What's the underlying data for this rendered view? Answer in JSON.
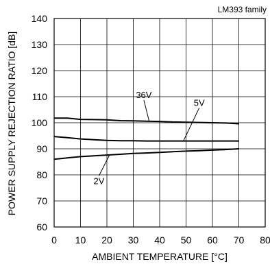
{
  "header": {
    "family_label": "LM393 family"
  },
  "chart_data": {
    "type": "line",
    "xlabel": "AMBIENT TEMPERATURE [°C]",
    "ylabel": "POWER SUPPLY REJECTION RATIO [dB]",
    "xlim": [
      0,
      80
    ],
    "ylim": [
      60,
      140
    ],
    "x_ticks": [
      "0",
      "10",
      "20",
      "30",
      "40",
      "50",
      "60",
      "70",
      "80"
    ],
    "y_ticks": [
      "60",
      "70",
      "80",
      "90",
      "100",
      "110",
      "120",
      "130",
      "140"
    ],
    "grid": true,
    "line_color": "#000000",
    "series": [
      {
        "name": "36V",
        "x": [
          0,
          5,
          10,
          15,
          20,
          25,
          30,
          35,
          40,
          45,
          50,
          55,
          60,
          65,
          70
        ],
        "y": [
          101.8,
          101.8,
          101.3,
          101.2,
          101.1,
          100.8,
          100.7,
          100.6,
          100.5,
          100.3,
          100.2,
          100.1,
          100.0,
          99.9,
          99.6
        ]
      },
      {
        "name": "5V",
        "x": [
          0,
          5,
          10,
          15,
          20,
          25,
          30,
          35,
          40,
          45,
          50,
          55,
          60,
          65,
          70
        ],
        "y": [
          94.7,
          94.3,
          93.8,
          93.5,
          93.2,
          93.1,
          93.1,
          93.0,
          93.0,
          93.0,
          93.0,
          93.0,
          93.0,
          93.0,
          93.0
        ]
      },
      {
        "name": "2V",
        "x": [
          0,
          5,
          10,
          15,
          20,
          25,
          30,
          35,
          40,
          45,
          50,
          55,
          60,
          65,
          70
        ],
        "y": [
          86.0,
          86.5,
          87.0,
          87.3,
          87.6,
          87.9,
          88.2,
          88.4,
          88.6,
          88.9,
          89.1,
          89.3,
          89.5,
          89.7,
          90.0
        ]
      }
    ],
    "annotations": [
      {
        "text": "36V",
        "series": "36V",
        "at_x": 36,
        "label_x": 34,
        "label_y": 109.5
      },
      {
        "text": "5V",
        "series": "5V",
        "at_x": 49,
        "label_x": 55,
        "label_y": 106.5
      },
      {
        "text": "2V",
        "series": "2V",
        "at_x": 21,
        "label_x": 17,
        "label_y": 76.5
      }
    ]
  }
}
